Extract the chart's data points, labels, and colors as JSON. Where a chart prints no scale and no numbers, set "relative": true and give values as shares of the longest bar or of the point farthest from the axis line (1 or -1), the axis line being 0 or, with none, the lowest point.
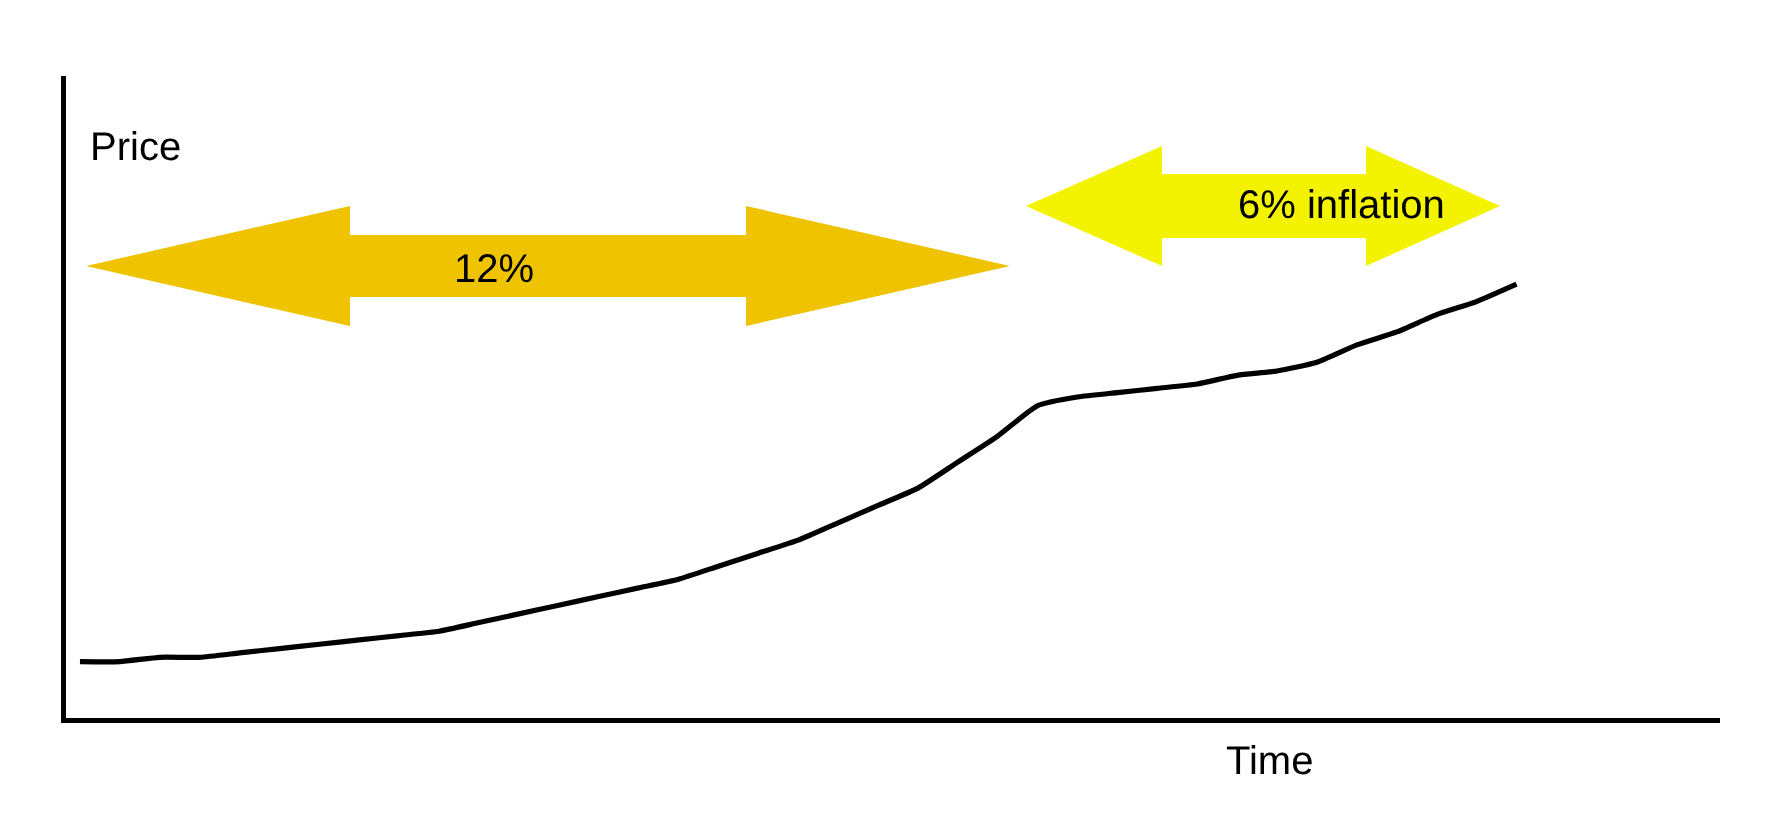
{
  "chart_data": {
    "type": "line",
    "xlabel": "Time",
    "ylabel": "Price",
    "annotations": [
      "12%",
      "6% inflation"
    ],
    "categories": [
      null,
      null,
      null,
      null,
      null,
      null,
      null,
      null,
      null,
      null,
      null,
      null,
      null,
      null,
      null,
      null,
      null,
      null,
      null,
      null,
      null,
      null,
      null,
      null,
      null,
      null,
      null,
      null,
      null,
      null,
      null,
      null,
      null,
      null,
      null,
      null,
      null
    ],
    "series": [
      {
        "color": "#000000",
        "values": [
          0.13,
          0.13,
          0.14,
          0.14,
          0.15,
          0.16,
          0.17,
          0.18,
          0.19,
          0.2,
          0.22,
          0.24,
          0.26,
          0.28,
          0.3,
          0.32,
          0.35,
          0.38,
          0.41,
          0.45,
          0.49,
          0.53,
          0.59,
          0.65,
          0.72,
          0.74,
          0.75,
          0.76,
          0.77,
          0.79,
          0.8,
          0.82,
          0.86,
          0.89,
          0.93,
          0.96,
          1
        ]
      }
    ],
    "relative": true
  }
}
